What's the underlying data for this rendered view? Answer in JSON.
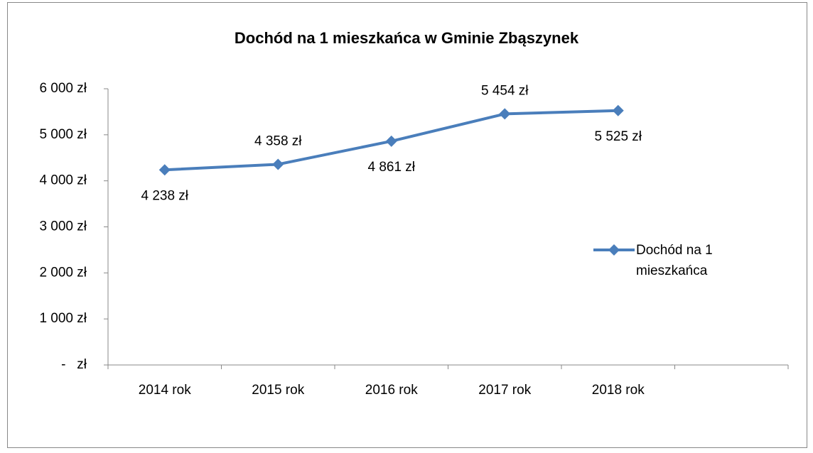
{
  "chart_data": {
    "type": "line",
    "title": "Dochód na 1 mieszkańca w Gminie Zbąszynek",
    "categories": [
      "2014 rok",
      "2015 rok",
      "2016 rok",
      "2017 rok",
      "2018 rok",
      null
    ],
    "series": [
      {
        "name": "Dochód na 1 mieszkańca",
        "color": "#4a7ebb",
        "values": [
          4238,
          4358,
          4861,
          5454,
          5525,
          null
        ],
        "value_labels": [
          "4 238 zł",
          "4 358 zł",
          "4 861 zł",
          "5 454 zł",
          "5 525 zł",
          null
        ]
      }
    ],
    "ylim": [
      0,
      6000
    ],
    "yticks": [
      {
        "value": 0,
        "label": "-   zł"
      },
      {
        "value": 1000,
        "label": "1 000 zł"
      },
      {
        "value": 2000,
        "label": "2 000 zł"
      },
      {
        "value": 3000,
        "label": "3 000 zł"
      },
      {
        "value": 4000,
        "label": "4 000 zł"
      },
      {
        "value": 5000,
        "label": "5 000 zł"
      },
      {
        "value": 6000,
        "label": "6 000 zł"
      }
    ],
    "grid": false,
    "legend": "right"
  }
}
